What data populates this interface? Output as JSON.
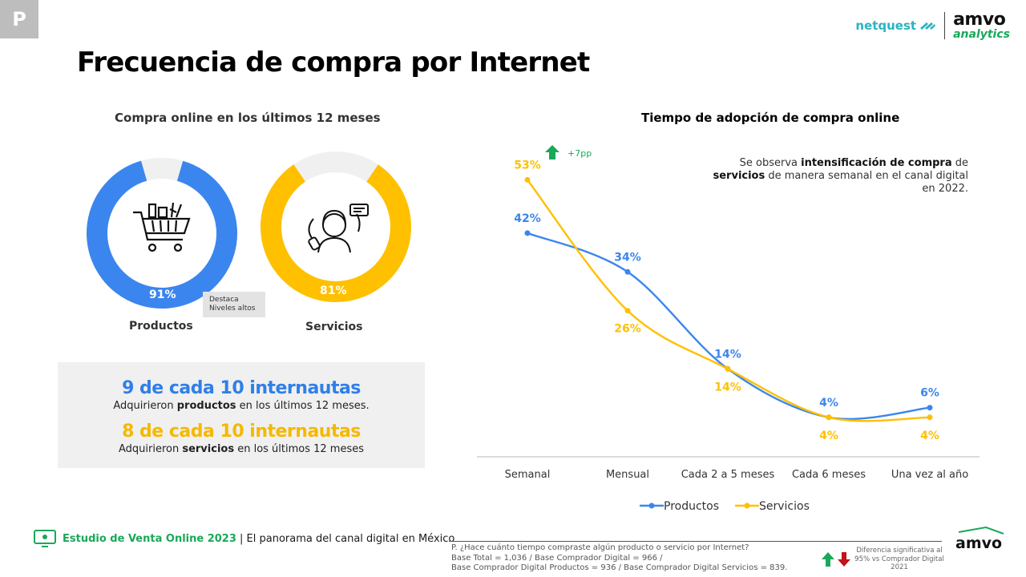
{
  "badge": "P",
  "logos": {
    "netquest": "netquest",
    "amvo_line1": "amvo",
    "amvo_line2": "analytics",
    "footer_amvo": "amvo"
  },
  "title": "Frecuencia de compra por Internet",
  "left": {
    "subtitle": "Compra online en los últimos 12 meses",
    "donuts": [
      {
        "label": "Productos",
        "pct_label": "91%",
        "value": 91,
        "color": "#3b86ee",
        "icon": "shopping-cart-icon"
      },
      {
        "label": "Servicios",
        "pct_label": "81%",
        "value": 81,
        "color": "#ffc000",
        "icon": "call-center-agent-icon"
      }
    ],
    "note": {
      "line1": "Destaca",
      "line2": "Niveles altos"
    },
    "stats": [
      {
        "headline": "9 de cada 10 internautas",
        "pre": "Adquirieron ",
        "bold": "productos",
        "post": " en los últimos 12 meses.",
        "color": "#2f7fe8"
      },
      {
        "headline": "8 de cada 10 internautas",
        "pre": "Adquirieron ",
        "bold": "servicios",
        "post": " en los últimos 12 meses",
        "color": "#f5b800"
      }
    ]
  },
  "right": {
    "subtitle": "Tiempo de adopción de compra online",
    "callout": {
      "pre": "Se observa ",
      "bold1": "intensificación de compra",
      "mid": " de ",
      "bold2": "servicios",
      "post": " de manera semanal en el canal digital en 2022."
    },
    "change_label": "+7pp"
  },
  "chart_data": {
    "type": "line",
    "title": "Tiempo de adopción de compra online",
    "categories": [
      "Semanal",
      "Mensual",
      "Cada 2 a 5 meses",
      "Cada 6 meses",
      "Una vez al año"
    ],
    "series": [
      {
        "name": "Productos",
        "color": "#3b86ee",
        "values": [
          42,
          34,
          14,
          4,
          6
        ],
        "labels": [
          "42%",
          "34%",
          "14%",
          "4%",
          "6%"
        ]
      },
      {
        "name": "Servicios",
        "color": "#ffc000",
        "values": [
          53,
          26,
          14,
          4,
          4
        ],
        "labels": [
          "53%",
          "26%",
          "14%",
          "4%",
          "4%"
        ]
      }
    ],
    "ylim": [
      0,
      60
    ],
    "legend": "bottom-center",
    "grid": false
  },
  "footer": {
    "study": "Estudio de Venta Online 2023",
    "separator": " | ",
    "tagline": "El panorama del canal digital en México",
    "footnote": [
      "P. ¿Hace cuánto tiempo compraste algún producto o servicio por Internet?",
      "Base Total = 1,036 / Base Comprador Digital = 966 /",
      "Base Comprador Digital Productos = 936 / Base Comprador Digital Servicios = 839."
    ],
    "diff_note": "Diferencia significativa al 95% vs Comprador Digital 2021"
  }
}
